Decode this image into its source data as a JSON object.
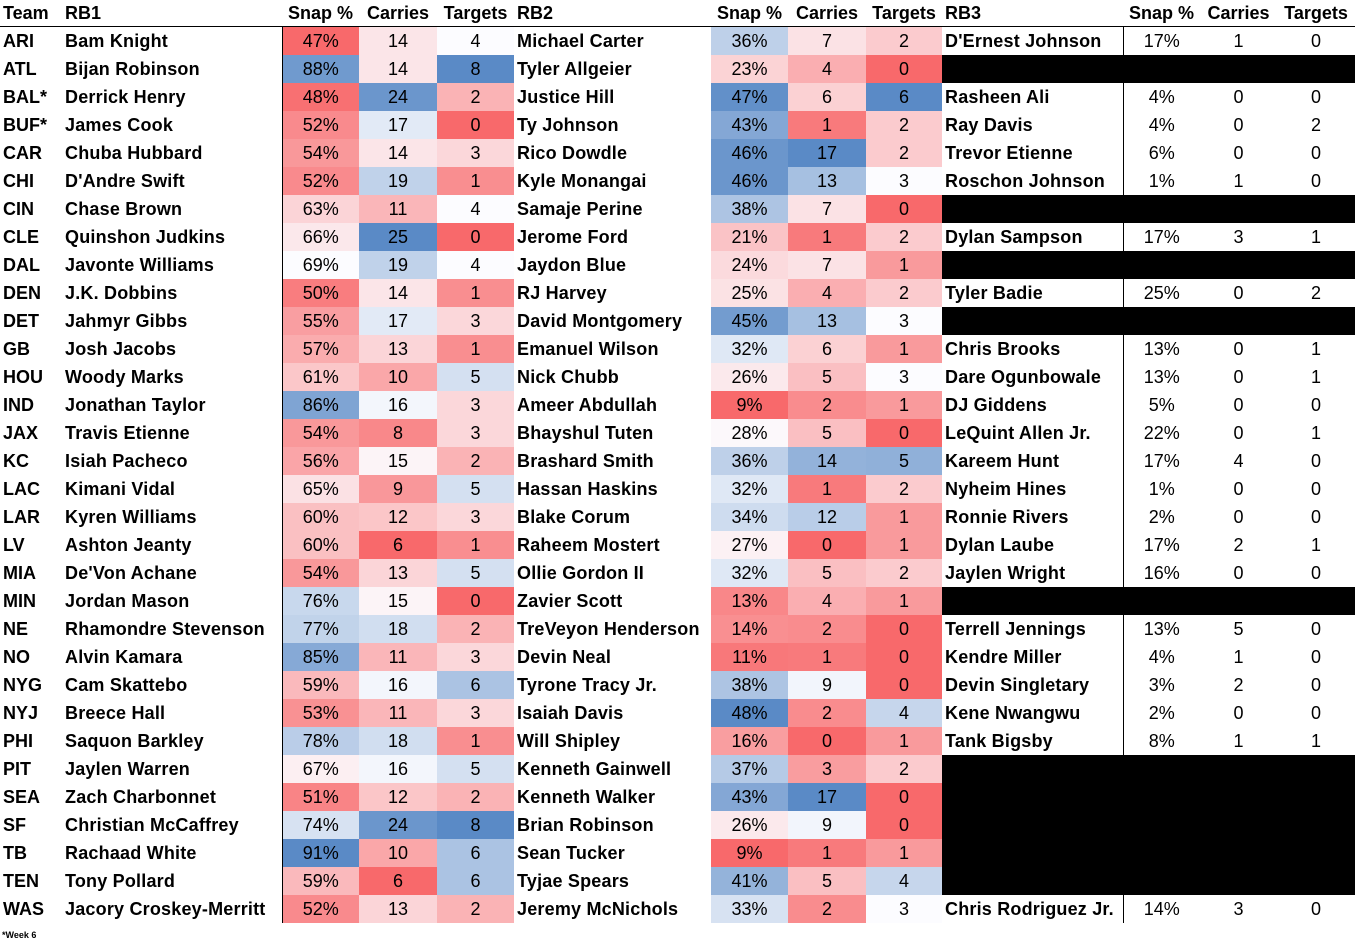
{
  "headers": [
    "Team",
    "RB1",
    "Snap %",
    "Carries",
    "Targets",
    "RB2",
    "Snap %",
    "Carries",
    "Targets",
    "RB3",
    "Snap %",
    "Carries",
    "Targets"
  ],
  "rows": [
    {
      "team": "ARI",
      "rb1": "Bam Knight",
      "s1": 47,
      "c1": 14,
      "t1": 4,
      "rb2": "Michael Carter",
      "s2": 36,
      "c2": 7,
      "t2": 2,
      "rb3": "D'Ernest Johnson",
      "s3": 17,
      "c3": 1,
      "t3": 0
    },
    {
      "team": "ATL",
      "rb1": "Bijan Robinson",
      "s1": 88,
      "c1": 14,
      "t1": 8,
      "rb2": "Tyler Allgeier",
      "s2": 23,
      "c2": 4,
      "t2": 0,
      "rb3": null
    },
    {
      "team": "BAL*",
      "rb1": "Derrick Henry",
      "s1": 48,
      "c1": 24,
      "t1": 2,
      "rb2": "Justice Hill",
      "s2": 47,
      "c2": 6,
      "t2": 6,
      "rb3": "Rasheen Ali",
      "s3": 4,
      "c3": 0,
      "t3": 0
    },
    {
      "team": "BUF*",
      "rb1": "James Cook",
      "s1": 52,
      "c1": 17,
      "t1": 0,
      "rb2": "Ty Johnson",
      "s2": 43,
      "c2": 1,
      "t2": 2,
      "rb3": "Ray Davis",
      "s3": 4,
      "c3": 0,
      "t3": 2
    },
    {
      "team": "CAR",
      "rb1": "Chuba Hubbard",
      "s1": 54,
      "c1": 14,
      "t1": 3,
      "rb2": "Rico Dowdle",
      "s2": 46,
      "c2": 17,
      "t2": 2,
      "rb3": "Trevor Etienne",
      "s3": 6,
      "c3": 0,
      "t3": 0
    },
    {
      "team": "CHI",
      "rb1": "D'Andre Swift",
      "s1": 52,
      "c1": 19,
      "t1": 1,
      "rb2": "Kyle Monangai",
      "s2": 46,
      "c2": 13,
      "t2": 3,
      "rb3": "Roschon Johnson",
      "s3": 1,
      "c3": 1,
      "t3": 0
    },
    {
      "team": "CIN",
      "rb1": "Chase Brown",
      "s1": 63,
      "c1": 11,
      "t1": 4,
      "rb2": "Samaje Perine",
      "s2": 38,
      "c2": 7,
      "t2": 0,
      "rb3": null
    },
    {
      "team": "CLE",
      "rb1": "Quinshon Judkins",
      "s1": 66,
      "c1": 25,
      "t1": 0,
      "rb2": "Jerome Ford",
      "s2": 21,
      "c2": 1,
      "t2": 2,
      "rb3": "Dylan Sampson",
      "s3": 17,
      "c3": 3,
      "t3": 1
    },
    {
      "team": "DAL",
      "rb1": "Javonte Williams",
      "s1": 69,
      "c1": 19,
      "t1": 4,
      "rb2": "Jaydon Blue",
      "s2": 24,
      "c2": 7,
      "t2": 1,
      "rb3": null
    },
    {
      "team": "DEN",
      "rb1": "J.K. Dobbins",
      "s1": 50,
      "c1": 14,
      "t1": 1,
      "rb2": "RJ Harvey",
      "s2": 25,
      "c2": 4,
      "t2": 2,
      "rb3": "Tyler Badie",
      "s3": 25,
      "c3": 0,
      "t3": 2
    },
    {
      "team": "DET",
      "rb1": "Jahmyr Gibbs",
      "s1": 55,
      "c1": 17,
      "t1": 3,
      "rb2": "David Montgomery",
      "s2": 45,
      "c2": 13,
      "t2": 3,
      "rb3": null
    },
    {
      "team": "GB",
      "rb1": "Josh Jacobs",
      "s1": 57,
      "c1": 13,
      "t1": 1,
      "rb2": "Emanuel Wilson",
      "s2": 32,
      "c2": 6,
      "t2": 1,
      "rb3": "Chris Brooks",
      "s3": 13,
      "c3": 0,
      "t3": 1
    },
    {
      "team": "HOU",
      "rb1": "Woody Marks",
      "s1": 61,
      "c1": 10,
      "t1": 5,
      "rb2": "Nick Chubb",
      "s2": 26,
      "c2": 5,
      "t2": 3,
      "rb3": "Dare Ogunbowale",
      "s3": 13,
      "c3": 0,
      "t3": 1
    },
    {
      "team": "IND",
      "rb1": "Jonathan Taylor",
      "s1": 86,
      "c1": 16,
      "t1": 3,
      "rb2": "Ameer Abdullah",
      "s2": 9,
      "c2": 2,
      "t2": 1,
      "rb3": "DJ Giddens",
      "s3": 5,
      "c3": 0,
      "t3": 0
    },
    {
      "team": "JAX",
      "rb1": "Travis Etienne",
      "s1": 54,
      "c1": 8,
      "t1": 3,
      "rb2": "Bhayshul Tuten",
      "s2": 28,
      "c2": 5,
      "t2": 0,
      "rb3": "LeQuint Allen Jr.",
      "s3": 22,
      "c3": 0,
      "t3": 1
    },
    {
      "team": "KC",
      "rb1": "Isiah Pacheco",
      "s1": 56,
      "c1": 15,
      "t1": 2,
      "rb2": "Brashard Smith",
      "s2": 36,
      "c2": 14,
      "t2": 5,
      "rb3": "Kareem Hunt",
      "s3": 17,
      "c3": 4,
      "t3": 0
    },
    {
      "team": "LAC",
      "rb1": "Kimani Vidal",
      "s1": 65,
      "c1": 9,
      "t1": 5,
      "rb2": "Hassan Haskins",
      "s2": 32,
      "c2": 1,
      "t2": 2,
      "rb3": "Nyheim Hines",
      "s3": 1,
      "c3": 0,
      "t3": 0
    },
    {
      "team": "LAR",
      "rb1": "Kyren Williams",
      "s1": 60,
      "c1": 12,
      "t1": 3,
      "rb2": "Blake Corum",
      "s2": 34,
      "c2": 12,
      "t2": 1,
      "rb3": "Ronnie Rivers",
      "s3": 2,
      "c3": 0,
      "t3": 0
    },
    {
      "team": "LV",
      "rb1": "Ashton Jeanty",
      "s1": 60,
      "c1": 6,
      "t1": 1,
      "rb2": "Raheem Mostert",
      "s2": 27,
      "c2": 0,
      "t2": 1,
      "rb3": "Dylan Laube",
      "s3": 17,
      "c3": 2,
      "t3": 1
    },
    {
      "team": "MIA",
      "rb1": "De'Von Achane",
      "s1": 54,
      "c1": 13,
      "t1": 5,
      "rb2": "Ollie Gordon II",
      "s2": 32,
      "c2": 5,
      "t2": 2,
      "rb3": "Jaylen Wright",
      "s3": 16,
      "c3": 0,
      "t3": 0
    },
    {
      "team": "MIN",
      "rb1": "Jordan Mason",
      "s1": 76,
      "c1": 15,
      "t1": 0,
      "rb2": "Zavier Scott",
      "s2": 13,
      "c2": 4,
      "t2": 1,
      "rb3": null
    },
    {
      "team": "NE",
      "rb1": "Rhamondre Stevenson",
      "s1": 77,
      "c1": 18,
      "t1": 2,
      "rb2": "TreVeyon Henderson",
      "s2": 14,
      "c2": 2,
      "t2": 0,
      "rb3": "Terrell Jennings",
      "s3": 13,
      "c3": 5,
      "t3": 0
    },
    {
      "team": "NO",
      "rb1": "Alvin Kamara",
      "s1": 85,
      "c1": 11,
      "t1": 3,
      "rb2": "Devin Neal",
      "s2": 11,
      "c2": 1,
      "t2": 0,
      "rb3": "Kendre Miller",
      "s3": 4,
      "c3": 1,
      "t3": 0
    },
    {
      "team": "NYG",
      "rb1": "Cam Skattebo",
      "s1": 59,
      "c1": 16,
      "t1": 6,
      "rb2": "Tyrone Tracy Jr.",
      "s2": 38,
      "c2": 9,
      "t2": 0,
      "rb3": "Devin Singletary",
      "s3": 3,
      "c3": 2,
      "t3": 0
    },
    {
      "team": "NYJ",
      "rb1": "Breece Hall",
      "s1": 53,
      "c1": 11,
      "t1": 3,
      "rb2": "Isaiah Davis",
      "s2": 48,
      "c2": 2,
      "t2": 4,
      "rb3": "Kene Nwangwu",
      "s3": 2,
      "c3": 0,
      "t3": 0
    },
    {
      "team": "PHI",
      "rb1": "Saquon Barkley",
      "s1": 78,
      "c1": 18,
      "t1": 1,
      "rb2": "Will Shipley",
      "s2": 16,
      "c2": 0,
      "t2": 1,
      "rb3": "Tank Bigsby",
      "s3": 8,
      "c3": 1,
      "t3": 1
    },
    {
      "team": "PIT",
      "rb1": "Jaylen Warren",
      "s1": 67,
      "c1": 16,
      "t1": 5,
      "rb2": "Kenneth Gainwell",
      "s2": 37,
      "c2": 3,
      "t2": 2,
      "rb3": null
    },
    {
      "team": "SEA",
      "rb1": "Zach Charbonnet",
      "s1": 51,
      "c1": 12,
      "t1": 2,
      "rb2": "Kenneth Walker",
      "s2": 43,
      "c2": 17,
      "t2": 0,
      "rb3": null
    },
    {
      "team": "SF",
      "rb1": "Christian McCaffrey",
      "s1": 74,
      "c1": 24,
      "t1": 8,
      "rb2": "Brian Robinson",
      "s2": 26,
      "c2": 9,
      "t2": 0,
      "rb3": null
    },
    {
      "team": "TB",
      "rb1": "Rachaad White",
      "s1": 91,
      "c1": 10,
      "t1": 6,
      "rb2": "Sean Tucker",
      "s2": 9,
      "c2": 1,
      "t2": 1,
      "rb3": null
    },
    {
      "team": "TEN",
      "rb1": "Tony Pollard",
      "s1": 59,
      "c1": 6,
      "t1": 6,
      "rb2": "Tyjae Spears",
      "s2": 41,
      "c2": 5,
      "t2": 4,
      "rb3": null
    },
    {
      "team": "WAS",
      "rb1": "Jacory Croskey-Merritt",
      "s1": 52,
      "c1": 13,
      "t1": 2,
      "rb2": "Jeremy McNichols",
      "s2": 33,
      "c2": 2,
      "t2": 3,
      "rb3": "Chris Rodriguez Jr.",
      "s3": 14,
      "c3": 3,
      "t3": 0
    }
  ],
  "colors": {
    "low": "#f8696b",
    "mid": "#fcfcff",
    "high": "#5a8ac6"
  },
  "footnote": "*Week 6"
}
